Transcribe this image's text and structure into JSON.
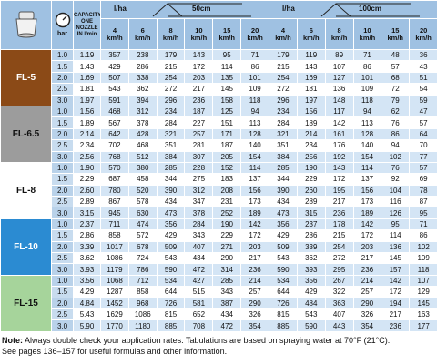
{
  "header": {
    "bar": "bar",
    "capacity": "CAPACITY ONE NOZZLE IN l/min",
    "section_50": {
      "unit": "l/ha",
      "spacing": "50cm",
      "speeds": [
        "4 km/h",
        "6 km/h",
        "8 km/h",
        "10 km/h",
        "15 km/h",
        "20 km/h"
      ]
    },
    "section_100": {
      "unit": "l/ha",
      "spacing": "100cm",
      "speeds": [
        "4 km/h",
        "6 km/h",
        "8 km/h",
        "10 km/h",
        "15 km/h",
        "20 km/h"
      ]
    }
  },
  "groups": [
    {
      "nozzle": "FL-5",
      "color": "#8b4a17",
      "text_color": "#ffffff",
      "rows": [
        [
          "1.0",
          "1.19",
          "357",
          "238",
          "179",
          "143",
          "95",
          "71",
          "179",
          "119",
          "89",
          "71",
          "48",
          "36"
        ],
        [
          "1.5",
          "1.43",
          "429",
          "286",
          "215",
          "172",
          "114",
          "86",
          "215",
          "143",
          "107",
          "86",
          "57",
          "43"
        ],
        [
          "2.0",
          "1.69",
          "507",
          "338",
          "254",
          "203",
          "135",
          "101",
          "254",
          "169",
          "127",
          "101",
          "68",
          "51"
        ],
        [
          "2.5",
          "1.81",
          "543",
          "362",
          "272",
          "217",
          "145",
          "109",
          "272",
          "181",
          "136",
          "109",
          "72",
          "54"
        ],
        [
          "3.0",
          "1.97",
          "591",
          "394",
          "296",
          "236",
          "158",
          "118",
          "296",
          "197",
          "148",
          "118",
          "79",
          "59"
        ]
      ]
    },
    {
      "nozzle": "FL-6.5",
      "color": "#9c9c9c",
      "text_color": "#111111",
      "rows": [
        [
          "1.0",
          "1.56",
          "468",
          "312",
          "234",
          "187",
          "125",
          "94",
          "234",
          "156",
          "117",
          "94",
          "62",
          "47"
        ],
        [
          "1.5",
          "1.89",
          "567",
          "378",
          "284",
          "227",
          "151",
          "113",
          "284",
          "189",
          "142",
          "113",
          "76",
          "57"
        ],
        [
          "2.0",
          "2.14",
          "642",
          "428",
          "321",
          "257",
          "171",
          "128",
          "321",
          "214",
          "161",
          "128",
          "86",
          "64"
        ],
        [
          "2.5",
          "2.34",
          "702",
          "468",
          "351",
          "281",
          "187",
          "140",
          "351",
          "234",
          "176",
          "140",
          "94",
          "70"
        ],
        [
          "3.0",
          "2.56",
          "768",
          "512",
          "384",
          "307",
          "205",
          "154",
          "384",
          "256",
          "192",
          "154",
          "102",
          "77"
        ]
      ]
    },
    {
      "nozzle": "FL-8",
      "color": "#ffffff",
      "text_color": "#111111",
      "rows": [
        [
          "1.0",
          "1.90",
          "570",
          "380",
          "285",
          "228",
          "152",
          "114",
          "285",
          "190",
          "143",
          "114",
          "76",
          "57"
        ],
        [
          "1.5",
          "2.29",
          "687",
          "458",
          "344",
          "275",
          "183",
          "137",
          "344",
          "229",
          "172",
          "137",
          "92",
          "69"
        ],
        [
          "2.0",
          "2.60",
          "780",
          "520",
          "390",
          "312",
          "208",
          "156",
          "390",
          "260",
          "195",
          "156",
          "104",
          "78"
        ],
        [
          "2.5",
          "2.89",
          "867",
          "578",
          "434",
          "347",
          "231",
          "173",
          "434",
          "289",
          "217",
          "173",
          "116",
          "87"
        ],
        [
          "3.0",
          "3.15",
          "945",
          "630",
          "473",
          "378",
          "252",
          "189",
          "473",
          "315",
          "236",
          "189",
          "126",
          "95"
        ]
      ]
    },
    {
      "nozzle": "FL-10",
      "color": "#2b8bd2",
      "text_color": "#ffffff",
      "rows": [
        [
          "1.0",
          "2.37",
          "711",
          "474",
          "356",
          "284",
          "190",
          "142",
          "356",
          "237",
          "178",
          "142",
          "95",
          "71"
        ],
        [
          "1.5",
          "2.86",
          "858",
          "572",
          "429",
          "343",
          "229",
          "172",
          "429",
          "286",
          "215",
          "172",
          "114",
          "86"
        ],
        [
          "2.0",
          "3.39",
          "1017",
          "678",
          "509",
          "407",
          "271",
          "203",
          "509",
          "339",
          "254",
          "203",
          "136",
          "102"
        ],
        [
          "2.5",
          "3.62",
          "1086",
          "724",
          "543",
          "434",
          "290",
          "217",
          "543",
          "362",
          "272",
          "217",
          "145",
          "109"
        ],
        [
          "3.0",
          "3.93",
          "1179",
          "786",
          "590",
          "472",
          "314",
          "236",
          "590",
          "393",
          "295",
          "236",
          "157",
          "118"
        ]
      ]
    },
    {
      "nozzle": "FL-15",
      "color": "#a6d49b",
      "text_color": "#111111",
      "rows": [
        [
          "1.0",
          "3.56",
          "1068",
          "712",
          "534",
          "427",
          "285",
          "214",
          "534",
          "356",
          "267",
          "214",
          "142",
          "107"
        ],
        [
          "1.5",
          "4.29",
          "1287",
          "858",
          "644",
          "515",
          "343",
          "257",
          "644",
          "429",
          "322",
          "257",
          "172",
          "129"
        ],
        [
          "2.0",
          "4.84",
          "1452",
          "968",
          "726",
          "581",
          "387",
          "290",
          "726",
          "484",
          "363",
          "290",
          "194",
          "145"
        ],
        [
          "2.5",
          "5.43",
          "1629",
          "1086",
          "815",
          "652",
          "434",
          "326",
          "815",
          "543",
          "407",
          "326",
          "217",
          "163"
        ],
        [
          "3.0",
          "5.90",
          "1770",
          "1180",
          "885",
          "708",
          "472",
          "354",
          "885",
          "590",
          "443",
          "354",
          "236",
          "177"
        ]
      ]
    }
  ],
  "footer": {
    "note_label": "Note:",
    "note": "Always double check your application rates. Tabulations are based on spraying water at 70°F (21°C).",
    "pages": "See pages 136–157 for useful formulas and other information."
  }
}
